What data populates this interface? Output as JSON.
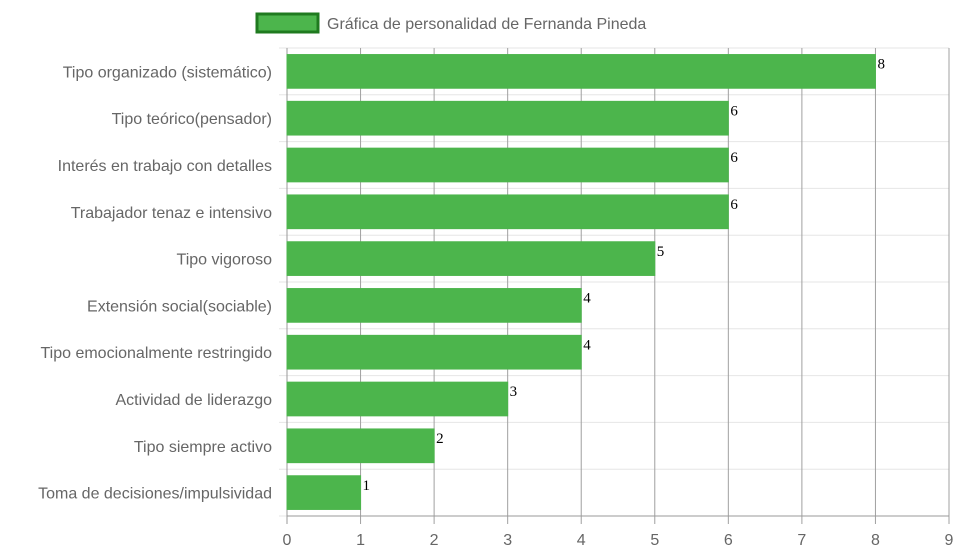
{
  "chart_data": {
    "type": "bar",
    "orientation": "horizontal",
    "categories": [
      "Tipo organizado (sistemático)",
      "Tipo teórico(pensador)",
      "Interés en trabajo con detalles",
      "Trabajador tenaz e intensivo",
      "Tipo vigoroso",
      "Extensión social(sociable)",
      "Tipo emocionalmente restringido",
      "Actividad de liderazgo",
      "Tipo siempre activo",
      "Toma de decisiones/impulsividad"
    ],
    "series": [
      {
        "name": "Gráfica de personalidad de Fernanda Pineda",
        "values": [
          8,
          6,
          6,
          6,
          5,
          4,
          4,
          3,
          2,
          1
        ],
        "color": "#4cb54c",
        "border_color": "#1f7a1f"
      }
    ],
    "xlim": [
      0,
      9
    ],
    "x_ticks": [
      "0",
      "1",
      "2",
      "3",
      "4",
      "5",
      "6",
      "7",
      "8",
      "9"
    ],
    "grid": true,
    "legend_position": "top",
    "data_labels": [
      "8",
      "6",
      "6",
      "6",
      "5",
      "4",
      "4",
      "3",
      "2",
      "1"
    ]
  }
}
